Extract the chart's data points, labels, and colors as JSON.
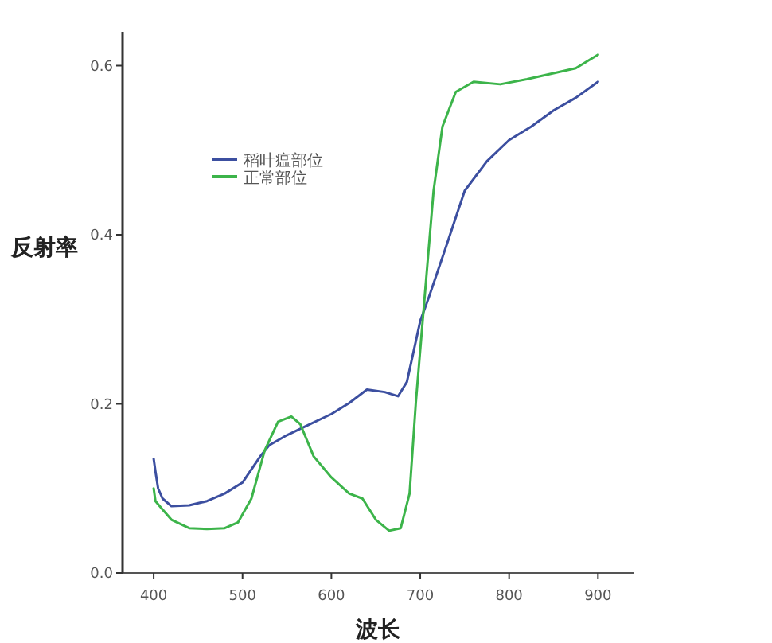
{
  "chart_data": {
    "type": "line",
    "xlabel": "波长",
    "ylabel": "反射率",
    "xlim": [
      365,
      940
    ],
    "ylim": [
      0,
      0.64
    ],
    "xticks": [
      400,
      500,
      600,
      700,
      800,
      900
    ],
    "yticks": [
      {
        "value": 0,
        "label": "0.0"
      },
      {
        "value": 0.2,
        "label": "0.2"
      },
      {
        "value": 0.4,
        "label": "0.4"
      },
      {
        "value": 0.6,
        "label": "0.6"
      }
    ],
    "legend": "top left",
    "grid": false,
    "marker": "none",
    "line_style": "solid",
    "series": [
      {
        "name": "稻叶瘟部位",
        "color": "#3c4fa0",
        "x": [
          400,
          402,
          405,
          410,
          420,
          440,
          460,
          480,
          500,
          520,
          530,
          550,
          570,
          600,
          620,
          640,
          660,
          675,
          685,
          700,
          710,
          730,
          750,
          775,
          800,
          825,
          850,
          875,
          900
        ],
        "values": [
          0.135,
          0.12,
          0.1,
          0.088,
          0.079,
          0.08,
          0.085,
          0.094,
          0.107,
          0.138,
          0.151,
          0.163,
          0.173,
          0.188,
          0.201,
          0.217,
          0.214,
          0.209,
          0.226,
          0.298,
          0.327,
          0.389,
          0.452,
          0.487,
          0.512,
          0.528,
          0.547,
          0.562,
          0.581
        ]
      },
      {
        "name": "正常部位",
        "color": "#3cb44a",
        "x": [
          400,
          402,
          410,
          420,
          440,
          460,
          480,
          495,
          510,
          525,
          540,
          555,
          565,
          580,
          600,
          620,
          635,
          650,
          665,
          678,
          688,
          695,
          705,
          715,
          725,
          740,
          760,
          790,
          820,
          850,
          875,
          900
        ],
        "values": [
          0.1,
          0.085,
          0.075,
          0.063,
          0.053,
          0.052,
          0.053,
          0.06,
          0.088,
          0.145,
          0.179,
          0.185,
          0.176,
          0.138,
          0.113,
          0.094,
          0.088,
          0.063,
          0.05,
          0.053,
          0.094,
          0.201,
          0.327,
          0.452,
          0.528,
          0.569,
          0.581,
          0.578,
          0.584,
          0.591,
          0.597,
          0.613
        ]
      }
    ]
  }
}
